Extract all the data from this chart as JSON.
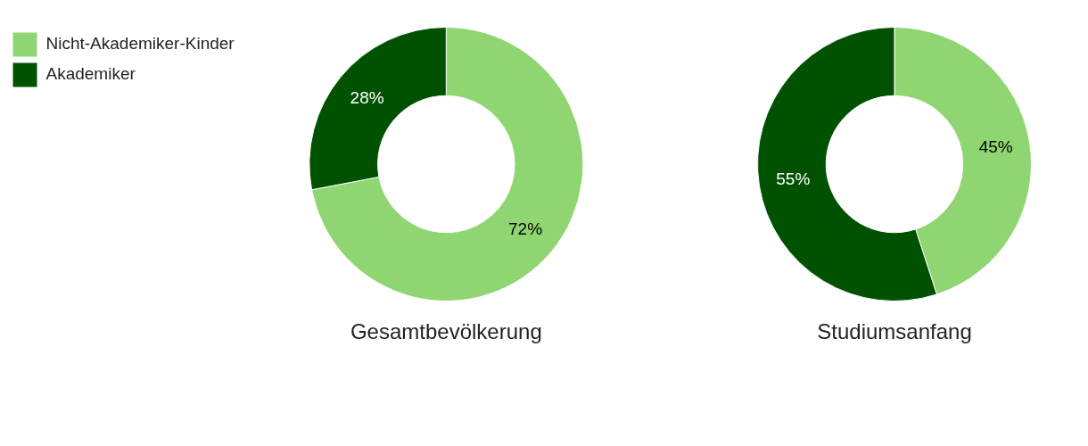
{
  "chart_data": [
    {
      "type": "donut",
      "title": "Gesamtbevölkerung",
      "categories": [
        "Nicht-Akademiker-Kinder",
        "Akademiker"
      ],
      "values": [
        72,
        28
      ],
      "colors": [
        "#8fd672",
        "#005200"
      ],
      "value_labels": [
        "72%",
        "28%"
      ],
      "legend": "top left"
    },
    {
      "type": "donut",
      "title": "Studiumsanfang",
      "values": [
        45,
        55
      ],
      "colors": [
        "#8fd672",
        "#005200"
      ],
      "value_labels": [
        "45%",
        "55%"
      ]
    }
  ]
}
